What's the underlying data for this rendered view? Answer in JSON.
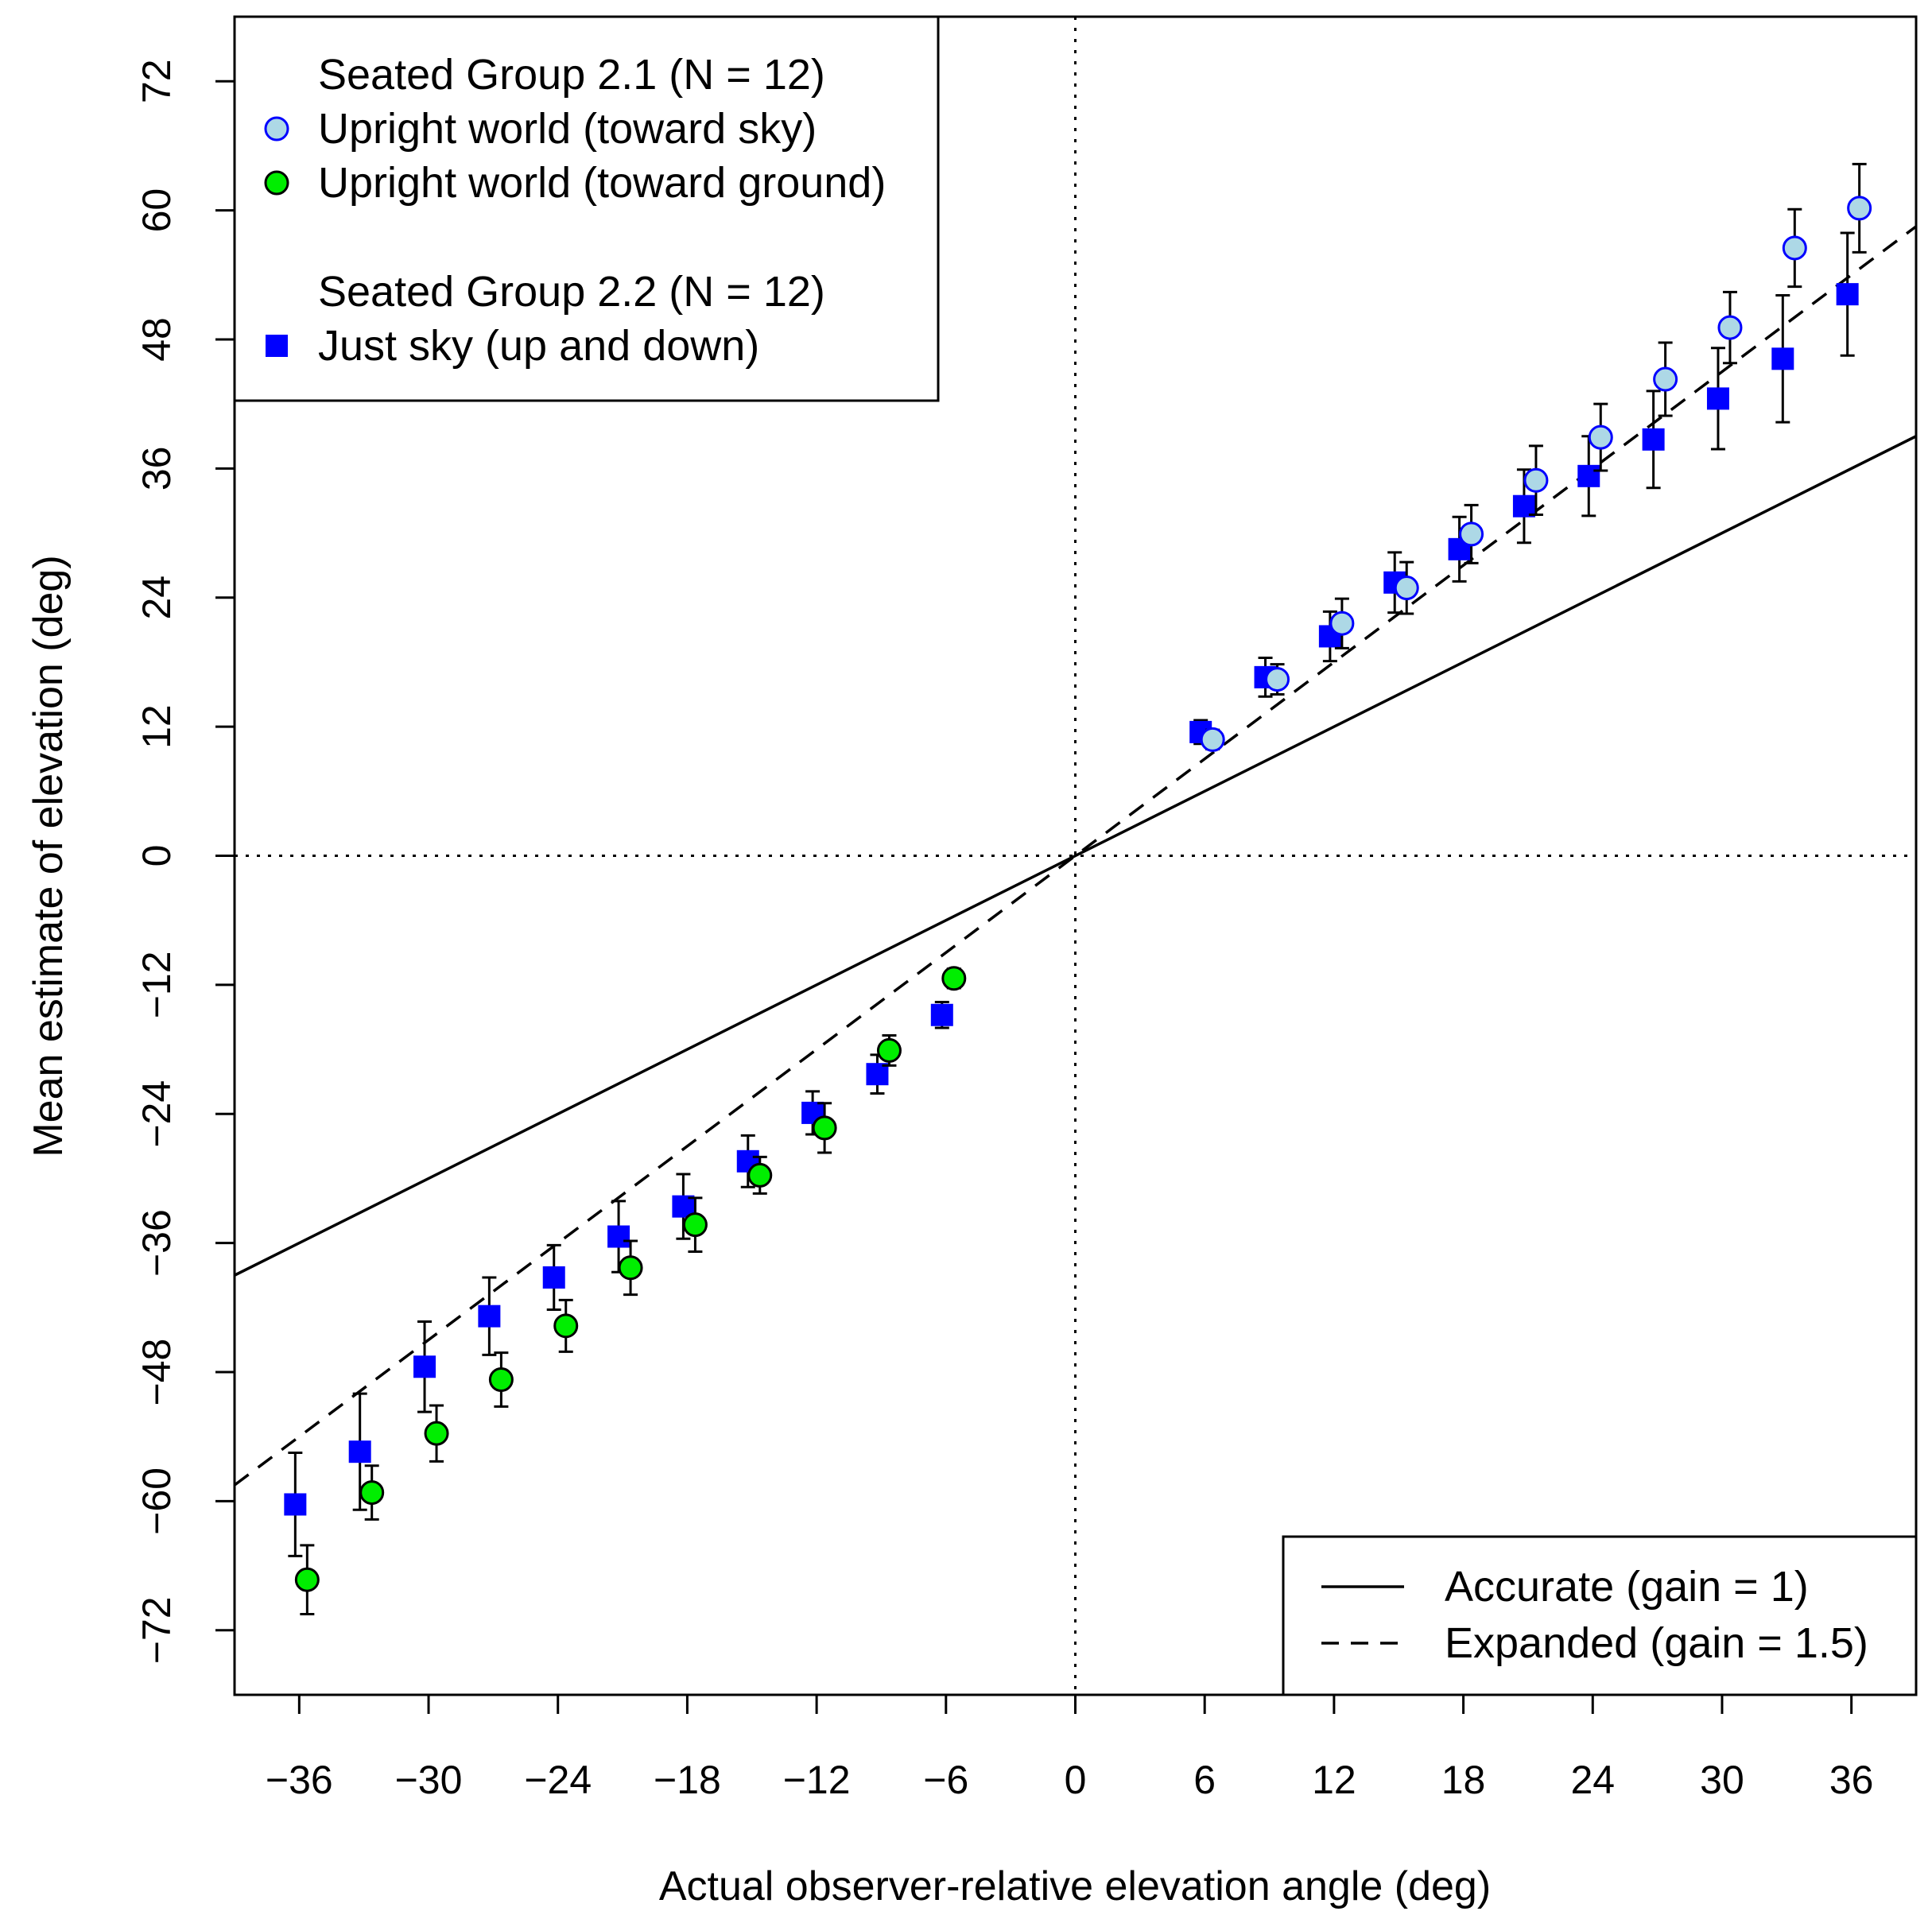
{
  "chart_data": {
    "type": "scatter",
    "xlabel": "Actual observer-relative elevation angle (deg)",
    "ylabel": "Mean estimate of elevation (deg)",
    "xlim": [
      -39,
      39
    ],
    "ylim": [
      -78,
      78
    ],
    "x_ticks": [
      {
        "value": -36,
        "label": "−36"
      },
      {
        "value": -30,
        "label": "−30"
      },
      {
        "value": -24,
        "label": "−24"
      },
      {
        "value": -18,
        "label": "−18"
      },
      {
        "value": -12,
        "label": "−12"
      },
      {
        "value": -6,
        "label": "−6"
      },
      {
        "value": 0,
        "label": "0"
      },
      {
        "value": 6,
        "label": "6"
      },
      {
        "value": 12,
        "label": "12"
      },
      {
        "value": 18,
        "label": "18"
      },
      {
        "value": 24,
        "label": "24"
      },
      {
        "value": 30,
        "label": "30"
      },
      {
        "value": 36,
        "label": "36"
      }
    ],
    "y_ticks": [
      {
        "value": -72,
        "label": "−72"
      },
      {
        "value": -60,
        "label": "−60"
      },
      {
        "value": -48,
        "label": "−48"
      },
      {
        "value": -36,
        "label": "−36"
      },
      {
        "value": -24,
        "label": "−24"
      },
      {
        "value": -12,
        "label": "−12"
      },
      {
        "value": 0,
        "label": "0"
      },
      {
        "value": 12,
        "label": "12"
      },
      {
        "value": 24,
        "label": "24"
      },
      {
        "value": 36,
        "label": "36"
      },
      {
        "value": 48,
        "label": "48"
      },
      {
        "value": 60,
        "label": "60"
      },
      {
        "value": 72,
        "label": "72"
      }
    ],
    "reference_lines": [
      {
        "name": "Accurate (gain = 1)",
        "slope": 1,
        "style": "solid"
      },
      {
        "name": "Expanded (gain = 1.5)",
        "slope": 1.5,
        "style": "dashed"
      }
    ],
    "zero_lines": {
      "style": "dotted",
      "x": 0,
      "y": 0
    },
    "series": [
      {
        "name": "Upright world (toward sky)",
        "group": "Seated Group 2.1 (N = 12)",
        "marker": "circle",
        "fill": "#add8e6",
        "stroke": "#0000ff",
        "points": [
          {
            "x": 6,
            "y": 10.8,
            "err": 0.9
          },
          {
            "x": 9,
            "y": 16.4,
            "err": 1.4
          },
          {
            "x": 12,
            "y": 21.6,
            "err": 2.3
          },
          {
            "x": 15,
            "y": 24.9,
            "err": 2.4
          },
          {
            "x": 18,
            "y": 29.9,
            "err": 2.7
          },
          {
            "x": 21,
            "y": 34.9,
            "err": 3.2
          },
          {
            "x": 24,
            "y": 38.9,
            "err": 3.1
          },
          {
            "x": 27,
            "y": 44.3,
            "err": 3.4
          },
          {
            "x": 30,
            "y": 49.1,
            "err": 3.3
          },
          {
            "x": 33,
            "y": 56.5,
            "err": 3.6
          },
          {
            "x": 36,
            "y": 60.2,
            "err": 4.1
          }
        ]
      },
      {
        "name": "Upright world (toward ground)",
        "group": "Seated Group 2.1 (N = 12)",
        "marker": "circle",
        "fill": "#00ee00",
        "stroke": "#000000",
        "points": [
          {
            "x": -6,
            "y": -11.4,
            "err": 0.9
          },
          {
            "x": -9,
            "y": -18.1,
            "err": 1.4
          },
          {
            "x": -12,
            "y": -25.3,
            "err": 2.3
          },
          {
            "x": -15,
            "y": -29.7,
            "err": 1.7
          },
          {
            "x": -18,
            "y": -34.3,
            "err": 2.5
          },
          {
            "x": -21,
            "y": -38.3,
            "err": 2.5
          },
          {
            "x": -24,
            "y": -43.7,
            "err": 2.4
          },
          {
            "x": -27,
            "y": -48.7,
            "err": 2.5
          },
          {
            "x": -30,
            "y": -53.7,
            "err": 2.6
          },
          {
            "x": -33,
            "y": -59.2,
            "err": 2.5
          },
          {
            "x": -36,
            "y": -67.3,
            "err": 3.2
          }
        ]
      },
      {
        "name": "Just sky (up and down)",
        "group": "Seated Group 2.2 (N = 12)",
        "marker": "square",
        "fill": "#0000ff",
        "stroke": "#0000ff",
        "points": [
          {
            "x": 6,
            "y": 11.5,
            "err": 1.1
          },
          {
            "x": 9,
            "y": 16.6,
            "err": 1.8
          },
          {
            "x": 12,
            "y": 20.4,
            "err": 2.3
          },
          {
            "x": 15,
            "y": 25.4,
            "err": 2.8
          },
          {
            "x": 18,
            "y": 28.5,
            "err": 3.0
          },
          {
            "x": 21,
            "y": 32.5,
            "err": 3.4
          },
          {
            "x": 24,
            "y": 35.3,
            "err": 3.7
          },
          {
            "x": 27,
            "y": 38.7,
            "err": 4.5
          },
          {
            "x": 30,
            "y": 42.5,
            "err": 4.7
          },
          {
            "x": 33,
            "y": 46.2,
            "err": 5.9
          },
          {
            "x": 36,
            "y": 52.2,
            "err": 5.7
          },
          {
            "x": -6,
            "y": -14.8,
            "err": 1.2
          },
          {
            "x": -9,
            "y": -20.3,
            "err": 1.8
          },
          {
            "x": -12,
            "y": -23.9,
            "err": 2.0
          },
          {
            "x": -15,
            "y": -28.4,
            "err": 2.4
          },
          {
            "x": -18,
            "y": -32.6,
            "err": 3.0
          },
          {
            "x": -21,
            "y": -35.4,
            "err": 3.3
          },
          {
            "x": -24,
            "y": -39.2,
            "err": 3.0
          },
          {
            "x": -27,
            "y": -42.8,
            "err": 3.6
          },
          {
            "x": -30,
            "y": -47.5,
            "err": 4.2
          },
          {
            "x": -33,
            "y": -55.4,
            "err": 5.4
          },
          {
            "x": -36,
            "y": -60.3,
            "err": 4.8
          }
        ]
      }
    ],
    "legend_groups": {
      "top_left": [
        {
          "kind": "header",
          "label": "Seated Group 2.1 (N = 12)"
        },
        {
          "kind": "entry",
          "series": 0,
          "label": "Upright world (toward sky)"
        },
        {
          "kind": "entry",
          "series": 1,
          "label": "Upright world (toward ground)"
        },
        {
          "kind": "header",
          "label": "Seated Group 2.2 (N = 12)"
        },
        {
          "kind": "entry",
          "series": 2,
          "label": "Just sky (up and down)"
        }
      ],
      "bottom_right": [
        {
          "kind": "line",
          "style": "solid",
          "label": "Accurate (gain = 1)"
        },
        {
          "kind": "line",
          "style": "dashed",
          "label": "Expanded (gain = 1.5)"
        }
      ]
    }
  }
}
